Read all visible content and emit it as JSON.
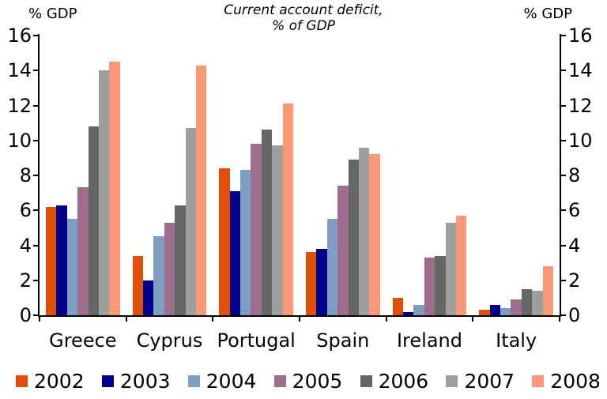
{
  "title": {
    "line1": "Current account deficit,",
    "line2": "% of GDP"
  },
  "axis_titles": {
    "left": "% GDP",
    "right": "% GDP"
  },
  "chart_data": {
    "type": "bar",
    "title": "Current account deficit, % of GDP",
    "categories": [
      "Greece",
      "Cyprus",
      "Portugal",
      "Spain",
      "Ireland",
      "Italy"
    ],
    "series": [
      {
        "name": "2002",
        "color": "#E04F08",
        "values": [
          6.2,
          3.4,
          8.4,
          3.6,
          1.0,
          0.3
        ]
      },
      {
        "name": "2003",
        "color": "#00008B",
        "values": [
          6.3,
          2.0,
          7.1,
          3.8,
          0.2,
          0.6
        ]
      },
      {
        "name": "2004",
        "color": "#7F9DC1",
        "values": [
          5.5,
          4.5,
          8.3,
          5.5,
          0.6,
          0.4
        ]
      },
      {
        "name": "2005",
        "color": "#9E6C8C",
        "values": [
          7.3,
          5.3,
          9.8,
          7.4,
          3.3,
          0.9
        ]
      },
      {
        "name": "2006",
        "color": "#666666",
        "values": [
          10.8,
          6.3,
          10.6,
          8.9,
          3.4,
          1.5
        ]
      },
      {
        "name": "2007",
        "color": "#9E9E9E",
        "values": [
          14.0,
          10.7,
          9.7,
          9.6,
          5.3,
          1.4
        ]
      },
      {
        "name": "2008",
        "color": "#FB9878",
        "values": [
          14.5,
          14.3,
          12.1,
          9.2,
          5.7,
          2.8
        ]
      }
    ],
    "ylim": [
      0,
      16
    ],
    "ytick_step": 2,
    "grid": false,
    "legend_position": "bottom",
    "axis_color": "#000000",
    "text_color": "#000000",
    "background_color": "#FFFFFF"
  }
}
